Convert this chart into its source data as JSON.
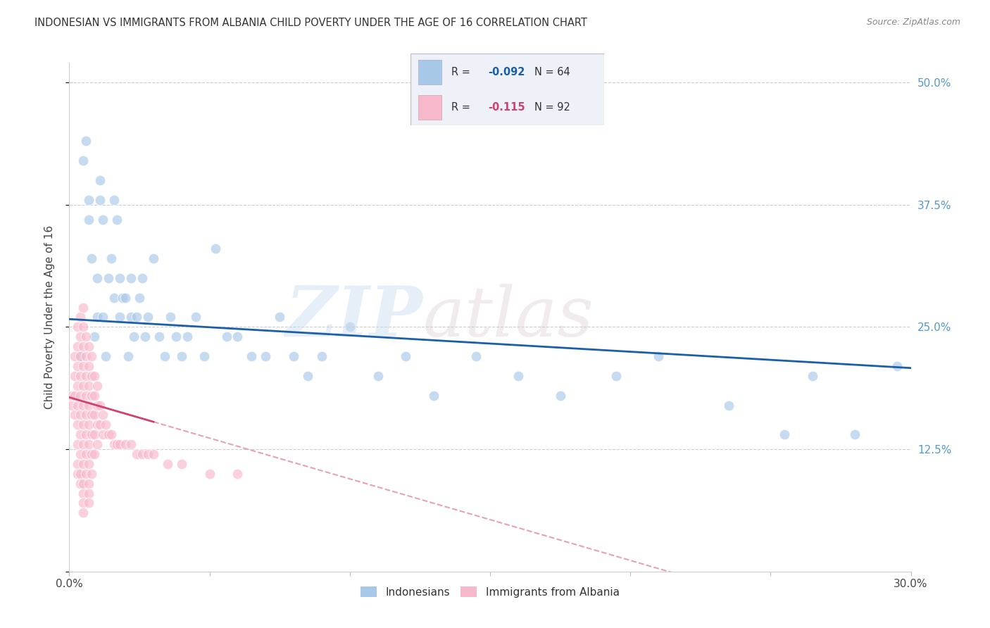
{
  "title": "INDONESIAN VS IMMIGRANTS FROM ALBANIA CHILD POVERTY UNDER THE AGE OF 16 CORRELATION CHART",
  "source": "Source: ZipAtlas.com",
  "ylabel": "Child Poverty Under the Age of 16",
  "ytick_values": [
    0.0,
    0.125,
    0.25,
    0.375,
    0.5
  ],
  "xlim": [
    0.0,
    0.3
  ],
  "ylim": [
    0.0,
    0.52
  ],
  "legend_label1": "Indonesians",
  "legend_label2": "Immigrants from Albania",
  "R1": "-0.092",
  "N1": "64",
  "R2": "-0.115",
  "N2": "92",
  "color_blue": "#a8c8e8",
  "color_pink": "#f8b8cc",
  "color_blue_line": "#1a5fa8",
  "color_pink_line": "#d04070",
  "color_pink_dashed": "#e8a0b8",
  "indonesian_x": [
    0.004,
    0.005,
    0.006,
    0.007,
    0.007,
    0.008,
    0.009,
    0.01,
    0.01,
    0.011,
    0.011,
    0.012,
    0.012,
    0.013,
    0.014,
    0.015,
    0.016,
    0.016,
    0.017,
    0.018,
    0.018,
    0.019,
    0.02,
    0.021,
    0.022,
    0.022,
    0.023,
    0.024,
    0.025,
    0.026,
    0.027,
    0.028,
    0.03,
    0.032,
    0.034,
    0.036,
    0.038,
    0.04,
    0.042,
    0.045,
    0.048,
    0.052,
    0.056,
    0.06,
    0.065,
    0.07,
    0.075,
    0.08,
    0.085,
    0.09,
    0.1,
    0.11,
    0.12,
    0.13,
    0.145,
    0.16,
    0.175,
    0.195,
    0.21,
    0.235,
    0.255,
    0.265,
    0.28,
    0.295
  ],
  "indonesian_y": [
    0.22,
    0.42,
    0.44,
    0.38,
    0.36,
    0.32,
    0.24,
    0.26,
    0.3,
    0.38,
    0.4,
    0.36,
    0.26,
    0.22,
    0.3,
    0.32,
    0.28,
    0.38,
    0.36,
    0.26,
    0.3,
    0.28,
    0.28,
    0.22,
    0.3,
    0.26,
    0.24,
    0.26,
    0.28,
    0.3,
    0.24,
    0.26,
    0.32,
    0.24,
    0.22,
    0.26,
    0.24,
    0.22,
    0.24,
    0.26,
    0.22,
    0.33,
    0.24,
    0.24,
    0.22,
    0.22,
    0.26,
    0.22,
    0.2,
    0.22,
    0.25,
    0.2,
    0.22,
    0.18,
    0.22,
    0.2,
    0.18,
    0.2,
    0.22,
    0.17,
    0.14,
    0.2,
    0.14,
    0.21
  ],
  "albanian_x": [
    0.001,
    0.001,
    0.002,
    0.002,
    0.002,
    0.002,
    0.003,
    0.003,
    0.003,
    0.003,
    0.003,
    0.003,
    0.003,
    0.003,
    0.003,
    0.004,
    0.004,
    0.004,
    0.004,
    0.004,
    0.004,
    0.004,
    0.004,
    0.004,
    0.004,
    0.005,
    0.005,
    0.005,
    0.005,
    0.005,
    0.005,
    0.005,
    0.005,
    0.005,
    0.005,
    0.005,
    0.005,
    0.005,
    0.006,
    0.006,
    0.006,
    0.006,
    0.006,
    0.006,
    0.006,
    0.006,
    0.007,
    0.007,
    0.007,
    0.007,
    0.007,
    0.007,
    0.007,
    0.007,
    0.007,
    0.007,
    0.008,
    0.008,
    0.008,
    0.008,
    0.008,
    0.008,
    0.008,
    0.009,
    0.009,
    0.009,
    0.009,
    0.009,
    0.01,
    0.01,
    0.01,
    0.01,
    0.011,
    0.011,
    0.012,
    0.012,
    0.013,
    0.014,
    0.015,
    0.016,
    0.017,
    0.018,
    0.02,
    0.022,
    0.024,
    0.026,
    0.028,
    0.03,
    0.035,
    0.04,
    0.05,
    0.06
  ],
  "albanian_y": [
    0.18,
    0.17,
    0.22,
    0.2,
    0.18,
    0.16,
    0.25,
    0.23,
    0.21,
    0.19,
    0.17,
    0.15,
    0.13,
    0.11,
    0.1,
    0.26,
    0.24,
    0.22,
    0.2,
    0.18,
    0.16,
    0.14,
    0.12,
    0.1,
    0.09,
    0.27,
    0.25,
    0.23,
    0.21,
    0.19,
    0.17,
    0.15,
    0.13,
    0.11,
    0.09,
    0.08,
    0.07,
    0.06,
    0.24,
    0.22,
    0.2,
    0.18,
    0.16,
    0.14,
    0.12,
    0.1,
    0.23,
    0.21,
    0.19,
    0.17,
    0.15,
    0.13,
    0.11,
    0.09,
    0.08,
    0.07,
    0.22,
    0.2,
    0.18,
    0.16,
    0.14,
    0.12,
    0.1,
    0.2,
    0.18,
    0.16,
    0.14,
    0.12,
    0.19,
    0.17,
    0.15,
    0.13,
    0.17,
    0.15,
    0.16,
    0.14,
    0.15,
    0.14,
    0.14,
    0.13,
    0.13,
    0.13,
    0.13,
    0.13,
    0.12,
    0.12,
    0.12,
    0.12,
    0.11,
    0.11,
    0.1,
    0.1
  ]
}
